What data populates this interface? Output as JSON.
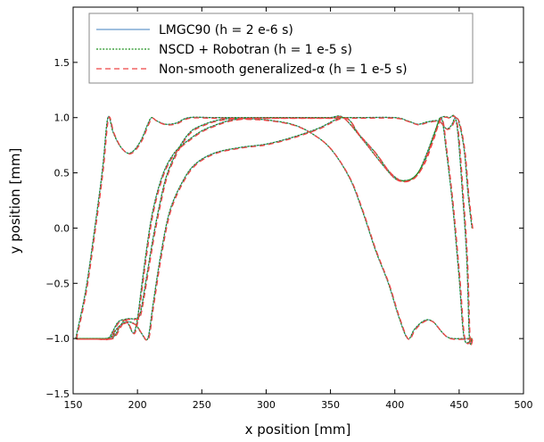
{
  "chart_data": {
    "type": "line",
    "title": "",
    "xlabel": "x position [mm]",
    "ylabel": "y position [mm]",
    "xlim": [
      150,
      500
    ],
    "ylim": [
      -1.5,
      2.0
    ],
    "xticks": [
      150,
      200,
      250,
      300,
      350,
      400,
      450,
      500
    ],
    "yticks": [
      -1.5,
      -1.0,
      -0.5,
      0.0,
      0.5,
      1.0,
      1.5
    ],
    "xtick_labels": [
      "150",
      "200",
      "250",
      "300",
      "350",
      "400",
      "450",
      "500"
    ],
    "ytick_labels": [
      "−1.5",
      "−1.0",
      "−0.5",
      "0.0",
      "0.5",
      "1.0",
      "1.5"
    ],
    "grid": false,
    "legend_position": "top-left",
    "series": [
      {
        "name": "LMGC90 (h = 2 e-6  s)",
        "color": "#6699cc",
        "style": "solid",
        "dx": 0,
        "dy": 0
      },
      {
        "name": "NSCD + Robotran (h = 1 e-5 s)",
        "color": "#1a8f1a",
        "style": "dotted",
        "dx": 0,
        "dy": 0
      },
      {
        "name": "Non-smooth generalized-α (h = 1 e-5 s)",
        "color": "#ee4444",
        "style": "dashed",
        "dx": 0.6,
        "dy": -0.006
      }
    ],
    "trajectories": [
      [
        [
          152,
          -1
        ],
        [
          160,
          -0.55
        ],
        [
          168,
          0.1
        ],
        [
          173,
          0.55
        ],
        [
          177,
          1.0
        ],
        [
          181,
          0.87
        ],
        [
          186,
          0.75
        ],
        [
          192,
          0.68
        ],
        [
          197,
          0.7
        ],
        [
          203,
          0.8
        ],
        [
          208,
          0.94
        ],
        [
          211,
          1.0
        ],
        [
          215,
          0.97
        ],
        [
          222,
          0.94
        ],
        [
          230,
          0.95
        ],
        [
          240,
          1.0
        ],
        [
          260,
          1.0
        ],
        [
          290,
          1.0
        ],
        [
          320,
          1.0
        ],
        [
          340,
          1.0
        ],
        [
          350,
          1.0
        ],
        [
          360,
          1.0
        ],
        [
          375,
          0.8
        ],
        [
          390,
          0.58
        ],
        [
          400,
          0.45
        ],
        [
          407,
          0.43
        ],
        [
          415,
          0.46
        ],
        [
          423,
          0.6
        ],
        [
          430,
          0.82
        ],
        [
          436,
          1.0
        ],
        [
          440,
          0.7
        ],
        [
          445,
          0.2
        ],
        [
          450,
          -0.45
        ],
        [
          454,
          -1.0
        ],
        [
          460,
          -1.0
        ]
      ],
      [
        [
          460,
          0.0
        ],
        [
          457,
          0.3
        ],
        [
          454,
          0.7
        ],
        [
          450,
          0.95
        ],
        [
          447,
          1.0
        ],
        [
          444,
          0.93
        ],
        [
          440,
          0.9
        ],
        [
          434,
          0.97
        ],
        [
          425,
          0.96
        ],
        [
          418,
          0.94
        ],
        [
          410,
          0.97
        ],
        [
          400,
          1.0
        ],
        [
          370,
          1.0
        ],
        [
          340,
          1.0
        ],
        [
          320,
          1.0
        ],
        [
          300,
          1.0
        ],
        [
          290,
          1.0
        ],
        [
          280,
          0.99
        ],
        [
          270,
          0.97
        ],
        [
          260,
          0.93
        ],
        [
          250,
          0.88
        ],
        [
          240,
          0.8
        ],
        [
          230,
          0.7
        ],
        [
          222,
          0.55
        ],
        [
          216,
          0.35
        ],
        [
          211,
          0.1
        ],
        [
          207,
          -0.2
        ],
        [
          203,
          -0.55
        ],
        [
          200,
          -0.82
        ],
        [
          197,
          -0.95
        ],
        [
          193,
          -0.87
        ],
        [
          190,
          -0.83
        ],
        [
          185,
          -0.85
        ],
        [
          181,
          -0.93
        ],
        [
          177,
          -1.0
        ],
        [
          168,
          -1.0
        ],
        [
          152,
          -1.0
        ]
      ],
      [
        [
          152,
          -1.0
        ],
        [
          170,
          -1.0
        ],
        [
          175,
          -1.0
        ],
        [
          180,
          -0.98
        ],
        [
          184,
          -0.91
        ],
        [
          189,
          -0.86
        ],
        [
          194,
          -0.85
        ],
        [
          199,
          -0.88
        ],
        [
          203,
          -0.95
        ],
        [
          208,
          -1.0
        ],
        [
          212,
          -0.7
        ],
        [
          218,
          -0.25
        ],
        [
          225,
          0.15
        ],
        [
          235,
          0.42
        ],
        [
          245,
          0.58
        ],
        [
          260,
          0.68
        ],
        [
          280,
          0.73
        ],
        [
          300,
          0.76
        ],
        [
          320,
          0.82
        ],
        [
          340,
          0.9
        ],
        [
          361,
          1.0
        ],
        [
          372,
          0.85
        ],
        [
          385,
          0.68
        ],
        [
          395,
          0.52
        ],
        [
          403,
          0.44
        ],
        [
          410,
          0.43
        ],
        [
          418,
          0.5
        ],
        [
          425,
          0.68
        ],
        [
          432,
          0.9
        ],
        [
          436,
          1.0
        ],
        [
          442,
          1.0
        ],
        [
          448,
          0.95
        ],
        [
          453,
          0.25
        ],
        [
          456,
          -0.3
        ],
        [
          458,
          -1.0
        ],
        [
          460,
          -1.0
        ]
      ],
      [
        [
          460,
          -1.0
        ],
        [
          455,
          -1.0
        ],
        [
          445,
          -1.0
        ],
        [
          440,
          -0.98
        ],
        [
          435,
          -0.92
        ],
        [
          430,
          -0.85
        ],
        [
          425,
          -0.83
        ],
        [
          420,
          -0.86
        ],
        [
          415,
          -0.92
        ],
        [
          410,
          -1.0
        ],
        [
          403,
          -0.8
        ],
        [
          395,
          -0.5
        ],
        [
          385,
          -0.2
        ],
        [
          375,
          0.15
        ],
        [
          365,
          0.45
        ],
        [
          350,
          0.72
        ],
        [
          335,
          0.86
        ],
        [
          320,
          0.94
        ],
        [
          300,
          0.98
        ],
        [
          285,
          0.99
        ],
        [
          270,
          0.99
        ],
        [
          260,
          0.97
        ],
        [
          250,
          0.93
        ],
        [
          242,
          0.88
        ],
        [
          235,
          0.78
        ],
        [
          228,
          0.63
        ],
        [
          222,
          0.45
        ],
        [
          217,
          0.2
        ],
        [
          212,
          -0.1
        ],
        [
          207,
          -0.45
        ],
        [
          202,
          -0.78
        ],
        [
          198,
          -0.82
        ],
        [
          194,
          -0.82
        ],
        [
          190,
          -0.83
        ],
        [
          186,
          -0.9
        ],
        [
          182,
          -0.98
        ],
        [
          178,
          -1.0
        ],
        [
          168,
          -1.0
        ],
        [
          152,
          -1.0
        ]
      ]
    ]
  }
}
